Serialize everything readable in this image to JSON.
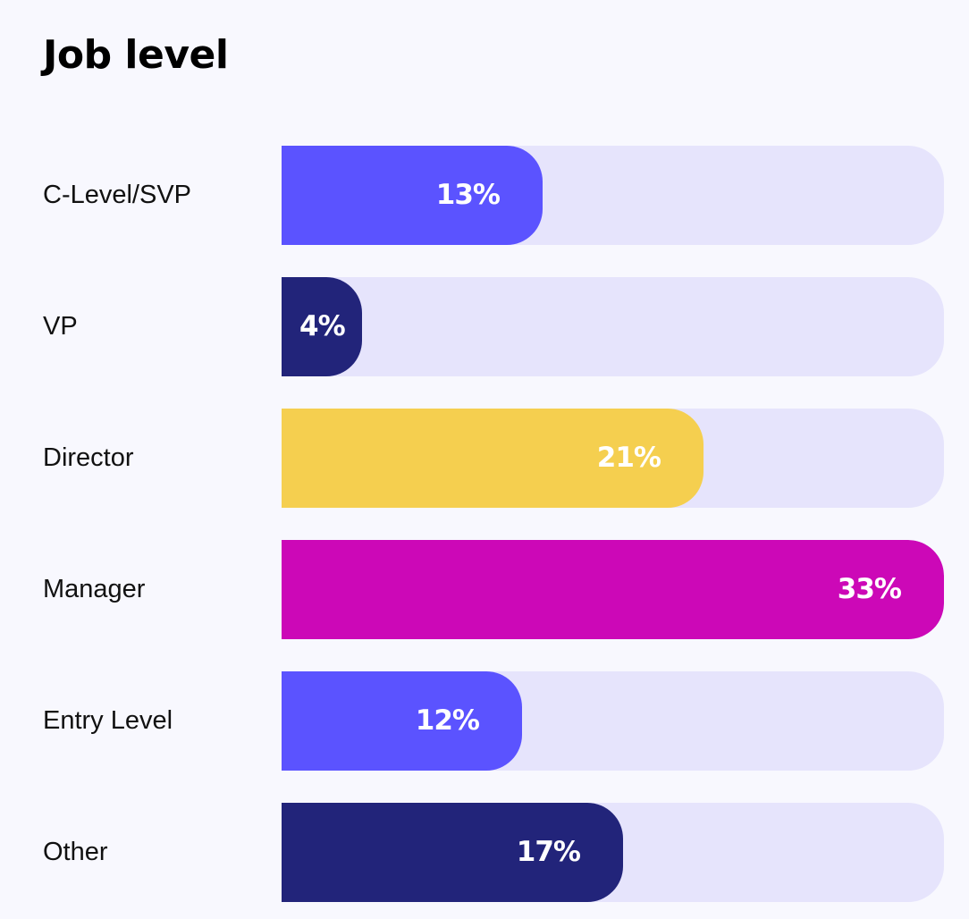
{
  "chart_data": {
    "type": "bar",
    "orientation": "horizontal",
    "title": "Job level",
    "categories": [
      "C-Level/SVP",
      "VP",
      "Director",
      "Manager",
      "Entry Level",
      "Other"
    ],
    "values": [
      13,
      4,
      21,
      33,
      12,
      17
    ],
    "value_labels": [
      "13%",
      "4%",
      "21%",
      "33%",
      "12%",
      "17%"
    ],
    "colors": [
      "#5b53ff",
      "#22247a",
      "#f5cf4f",
      "#cc08b7",
      "#5b53ff",
      "#22247a"
    ],
    "track_color": "#e6e4fc",
    "xlim": [
      0,
      33
    ],
    "unit": "%",
    "grid": false,
    "legend": "none"
  }
}
